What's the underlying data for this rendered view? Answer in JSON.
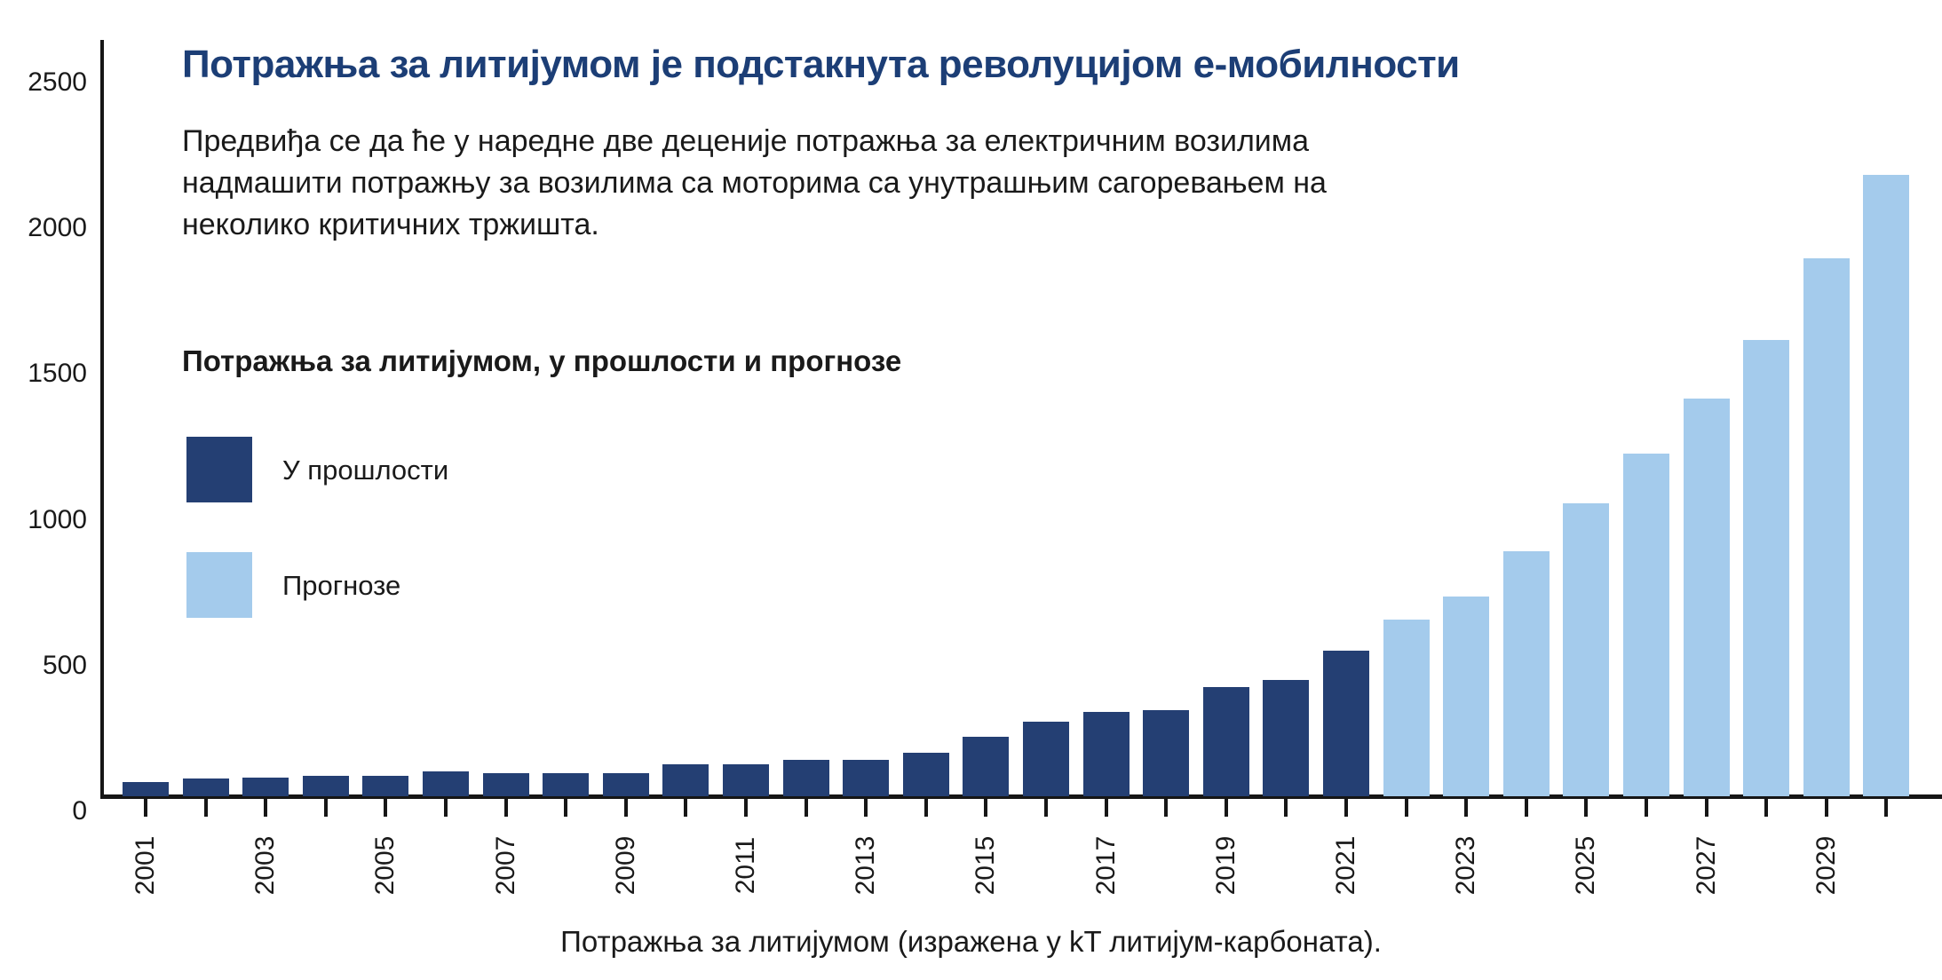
{
  "header": {
    "title": "Потражња за литијумом је подстакнута револуцијом е-мобилности",
    "subtitle_lines": [
      "Предвиђа се да ће у наредне две деценије потражња за електричним возилима",
      "надмашити потражњу за возилима са моторима са унутрашњим сагоревањем на",
      "неколико критичних тржишта."
    ]
  },
  "chart": {
    "section_title": "Потражња за литијумом, у прошлости и прогнозе",
    "legend": [
      {
        "label": "У прошлости",
        "color": "#243f73"
      },
      {
        "label": "Прогнозе",
        "color": "#a4cbec"
      }
    ],
    "caption": "Потражња за литијумом (изражена у kT литијум-карбоната)."
  },
  "colors": {
    "historic_bar": "#243f73",
    "forecast_bar": "#a4cbec",
    "title_text": "#1c3e76",
    "axis": "#161616",
    "body_text": "#1a1a1a"
  },
  "chart_data": {
    "type": "bar",
    "title": "Потражња за литијумом, у прошлости и прогнозе",
    "unit": "kT литијум-карбоната",
    "x": [
      2001,
      2002,
      2003,
      2004,
      2005,
      2006,
      2007,
      2008,
      2009,
      2010,
      2011,
      2012,
      2013,
      2014,
      2015,
      2016,
      2017,
      2018,
      2019,
      2020,
      2021,
      2022,
      2023,
      2024,
      2025,
      2026,
      2027,
      2028,
      2029,
      2030
    ],
    "series": [
      {
        "name": "У прошлости",
        "color": "#243f73",
        "from": 2001,
        "to": 2021,
        "values": [
          50,
          60,
          65,
          70,
          70,
          85,
          80,
          80,
          80,
          110,
          110,
          125,
          125,
          150,
          205,
          255,
          290,
          295,
          375,
          400,
          500
        ]
      },
      {
        "name": "Прогнозе",
        "color": "#a4cbec",
        "from": 2022,
        "to": 2030,
        "values": [
          605,
          685,
          840,
          1005,
          1175,
          1365,
          1565,
          1845,
          2130
        ]
      }
    ],
    "ylim": [
      0,
      2500
    ],
    "y_ticks": [
      "0",
      "500",
      "1000",
      "1500",
      "2000",
      "2500"
    ],
    "x_tick_labels": [
      "2001",
      "2003",
      "2005",
      "2007",
      "2009",
      "2011",
      "2013",
      "2015",
      "2017",
      "2019",
      "2021",
      "2023",
      "2025",
      "2027",
      "2029"
    ],
    "grid": false,
    "legend_position": "upper-left-inside",
    "bar_orientation": "vertical"
  }
}
